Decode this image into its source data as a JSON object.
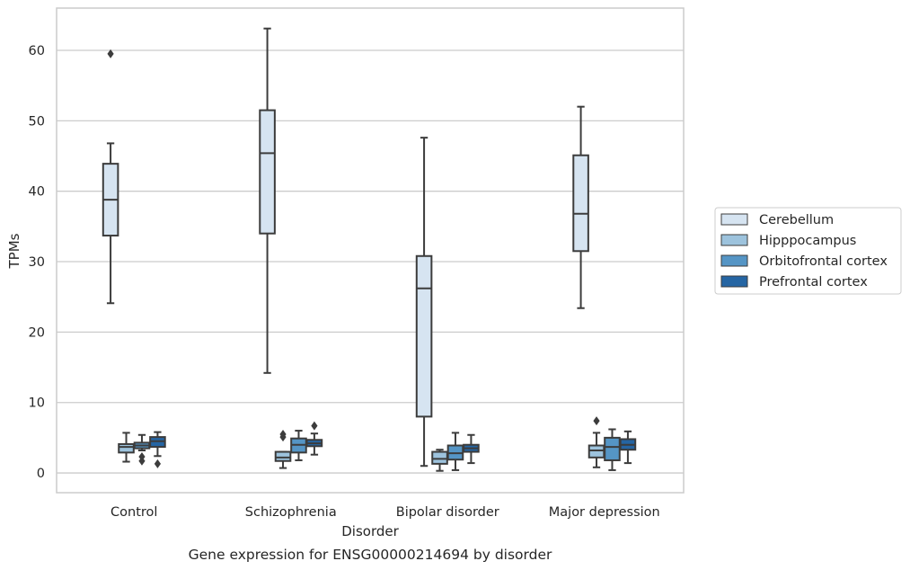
{
  "caption": "Gene expression for ENSG00000214694 by disorder",
  "colors": {
    "grid": "#cccccc",
    "frame": "#cccccc",
    "line": "#3c3c3c",
    "text": "#262626",
    "Cerebellum": "#d6e4f1",
    "Hipppocampus": "#9dc3dd",
    "Orbitofrontal cortex": "#5595c5",
    "Prefrontal cortex": "#2565a3"
  },
  "chart_data": {
    "type": "box",
    "xlabel": "Disorder",
    "ylabel": "TPMs",
    "ylim": [
      -2.8,
      66
    ],
    "yticks": [
      0,
      10,
      20,
      30,
      40,
      50,
      60
    ],
    "grid": "horizontal",
    "legend_position": "right",
    "categories": [
      "Control",
      "Schizophrenia",
      "Bipolar disorder",
      "Major depression"
    ],
    "series": [
      {
        "name": "Cerebellum",
        "boxes": [
          {
            "whislo": 24.1,
            "q1": 33.7,
            "med": 38.8,
            "q3": 43.9,
            "whishi": 46.8,
            "fliers": [
              59.5
            ]
          },
          {
            "whislo": 14.2,
            "q1": 34.0,
            "med": 45.4,
            "q3": 51.5,
            "whishi": 63.1,
            "fliers": []
          },
          {
            "whislo": 1.0,
            "q1": 8.0,
            "med": 26.2,
            "q3": 30.8,
            "whishi": 47.6,
            "fliers": []
          },
          {
            "whislo": 23.4,
            "q1": 31.5,
            "med": 36.8,
            "q3": 45.1,
            "whishi": 52.0,
            "fliers": []
          }
        ]
      },
      {
        "name": "Hipppocampus",
        "boxes": [
          {
            "whislo": 1.6,
            "q1": 2.9,
            "med": 3.7,
            "q3": 4.1,
            "whishi": 5.7,
            "fliers": []
          },
          {
            "whislo": 0.7,
            "q1": 1.7,
            "med": 2.2,
            "q3": 3.0,
            "whishi": 3.0,
            "fliers": [
              5.1,
              5.5
            ]
          },
          {
            "whislo": 0.3,
            "q1": 1.3,
            "med": 2.0,
            "q3": 3.0,
            "whishi": 3.3,
            "fliers": []
          },
          {
            "whislo": 0.8,
            "q1": 2.2,
            "med": 3.2,
            "q3": 3.9,
            "whishi": 5.7,
            "fliers": [
              7.4
            ]
          }
        ]
      },
      {
        "name": "Orbitofrontal cortex",
        "boxes": [
          {
            "whislo": 3.2,
            "q1": 3.5,
            "med": 3.9,
            "q3": 4.3,
            "whishi": 5.4,
            "fliers": [
              1.7,
              2.3
            ]
          },
          {
            "whislo": 1.8,
            "q1": 2.9,
            "med": 4.0,
            "q3": 4.9,
            "whishi": 6.0,
            "fliers": []
          },
          {
            "whislo": 0.4,
            "q1": 1.9,
            "med": 2.8,
            "q3": 3.9,
            "whishi": 5.7,
            "fliers": []
          },
          {
            "whislo": 0.4,
            "q1": 1.8,
            "med": 3.7,
            "q3": 5.0,
            "whishi": 6.2,
            "fliers": []
          }
        ]
      },
      {
        "name": "Prefrontal cortex",
        "boxes": [
          {
            "whislo": 2.4,
            "q1": 3.7,
            "med": 4.5,
            "q3": 5.1,
            "whishi": 5.8,
            "fliers": [
              1.3
            ]
          },
          {
            "whislo": 2.6,
            "q1": 3.8,
            "med": 4.2,
            "q3": 4.7,
            "whishi": 5.6,
            "fliers": [
              6.7
            ]
          },
          {
            "whislo": 1.4,
            "q1": 3.0,
            "med": 3.5,
            "q3": 4.0,
            "whishi": 5.4,
            "fliers": []
          },
          {
            "whislo": 1.4,
            "q1": 3.3,
            "med": 4.0,
            "q3": 4.8,
            "whishi": 5.9,
            "fliers": []
          }
        ]
      }
    ]
  }
}
